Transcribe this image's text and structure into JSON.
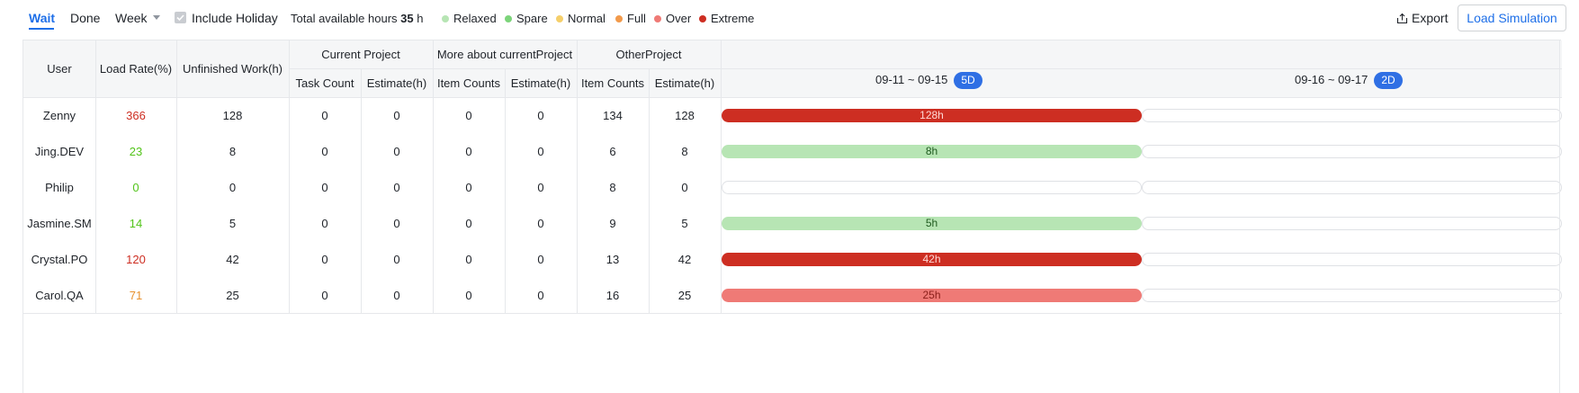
{
  "toolbar": {
    "tabs": [
      {
        "label": "Wait",
        "active": true
      },
      {
        "label": "Done",
        "active": false
      }
    ],
    "period_select": "Week",
    "include_holiday_label": "Include Holiday",
    "include_holiday_checked": true,
    "total_hours_label": "Total available hours",
    "total_hours_value": "35",
    "total_hours_unit": "h",
    "legend": [
      {
        "label": "Relaxed",
        "color": "#b7e5b4"
      },
      {
        "label": "Spare",
        "color": "#7cd47a"
      },
      {
        "label": "Normal",
        "color": "#f5cf6a"
      },
      {
        "label": "Full",
        "color": "#f29a4b"
      },
      {
        "label": "Over",
        "color": "#ef7a76"
      },
      {
        "label": "Extreme",
        "color": "#cd2e22"
      }
    ],
    "export_label": "Export",
    "load_simulation_label": "Load Simulation"
  },
  "table": {
    "headers": {
      "user": "User",
      "load_rate": "Load Rate(%)",
      "unfinished_work": "Unfinished Work(h)",
      "current_project": "Current Project",
      "more_about": "More about currentProject",
      "other_project": "OtherProject",
      "task_count": "Task Count",
      "estimate": "Estimate(h)",
      "item_counts": "Item Counts"
    },
    "periods": [
      {
        "range": "09-11 ~ 09-15",
        "days": "5D"
      },
      {
        "range": "09-16 ~ 09-17",
        "days": "2D"
      }
    ],
    "rows": [
      {
        "user": "Zenny",
        "load_rate": "366",
        "rate_color": "#cd2e22",
        "unfinished": "128",
        "cp_tasks": "0",
        "cp_est": "0",
        "mc_items": "0",
        "mc_est": "0",
        "op_items": "134",
        "op_est": "128",
        "bar1": "128h",
        "bar1_color": "#cd2e22",
        "bar1_text": "#ffd9d6",
        "bar2": ""
      },
      {
        "user": "Jing.DEV",
        "load_rate": "23",
        "rate_color": "#52c41a",
        "unfinished": "8",
        "cp_tasks": "0",
        "cp_est": "0",
        "mc_items": "0",
        "mc_est": "0",
        "op_items": "6",
        "op_est": "8",
        "bar1": "8h",
        "bar1_color": "#b7e5b4",
        "bar1_text": "#1f5b1f",
        "bar2": ""
      },
      {
        "user": "Philip",
        "load_rate": "0",
        "rate_color": "#52c41a",
        "unfinished": "0",
        "cp_tasks": "0",
        "cp_est": "0",
        "mc_items": "0",
        "mc_est": "0",
        "op_items": "8",
        "op_est": "0",
        "bar1": "",
        "bar1_color": "",
        "bar1_text": "",
        "bar2": ""
      },
      {
        "user": "Jasmine.SM",
        "load_rate": "14",
        "rate_color": "#52c41a",
        "unfinished": "5",
        "cp_tasks": "0",
        "cp_est": "0",
        "mc_items": "0",
        "mc_est": "0",
        "op_items": "9",
        "op_est": "5",
        "bar1": "5h",
        "bar1_color": "#b7e5b4",
        "bar1_text": "#1f5b1f",
        "bar2": ""
      },
      {
        "user": "Crystal.PO",
        "load_rate": "120",
        "rate_color": "#cd2e22",
        "unfinished": "42",
        "cp_tasks": "0",
        "cp_est": "0",
        "mc_items": "0",
        "mc_est": "0",
        "op_items": "13",
        "op_est": "42",
        "bar1": "42h",
        "bar1_color": "#cd2e22",
        "bar1_text": "#ffd9d6",
        "bar2": ""
      },
      {
        "user": "Carol.QA",
        "load_rate": "71",
        "rate_color": "#e8912e",
        "unfinished": "25",
        "cp_tasks": "0",
        "cp_est": "0",
        "mc_items": "0",
        "mc_est": "0",
        "op_items": "16",
        "op_est": "25",
        "bar1": "25h",
        "bar1_color": "#ef7a76",
        "bar1_text": "#8a1f1a",
        "bar2": ""
      }
    ]
  }
}
